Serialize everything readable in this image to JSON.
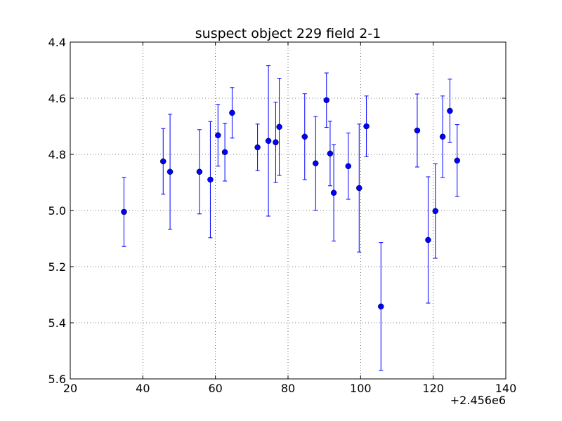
{
  "chart_data": {
    "type": "scatter",
    "title": "suspect object 229 field 2-1",
    "xlabel": "",
    "ylabel": "",
    "x_offset_label": "+2.456e6",
    "xlim": [
      20,
      140
    ],
    "ylim": [
      5.6,
      4.4
    ],
    "y_inverted": true,
    "grid": true,
    "x_ticks": [
      "20",
      "40",
      "60",
      "80",
      "100",
      "120",
      "140"
    ],
    "y_ticks": [
      "4.4",
      "4.6",
      "4.8",
      "5.0",
      "5.2",
      "5.4",
      "5.6"
    ],
    "marker_color": "#0000ff",
    "series": [
      {
        "points": [
          {
            "x": 34.8,
            "y": 5.005,
            "err": 0.123
          },
          {
            "x": 45.6,
            "y": 4.825,
            "err": 0.117
          },
          {
            "x": 47.5,
            "y": 4.862,
            "err": 0.205
          },
          {
            "x": 55.6,
            "y": 4.862,
            "err": 0.15
          },
          {
            "x": 58.6,
            "y": 4.89,
            "err": 0.207
          },
          {
            "x": 60.7,
            "y": 4.732,
            "err": 0.11
          },
          {
            "x": 62.6,
            "y": 4.792,
            "err": 0.103
          },
          {
            "x": 64.6,
            "y": 4.652,
            "err": 0.09
          },
          {
            "x": 71.6,
            "y": 4.775,
            "err": 0.083
          },
          {
            "x": 74.6,
            "y": 4.752,
            "err": 0.268
          },
          {
            "x": 76.6,
            "y": 4.757,
            "err": 0.143
          },
          {
            "x": 77.6,
            "y": 4.702,
            "err": 0.173
          },
          {
            "x": 84.6,
            "y": 4.737,
            "err": 0.153
          },
          {
            "x": 87.6,
            "y": 4.832,
            "err": 0.167
          },
          {
            "x": 90.6,
            "y": 4.607,
            "err": 0.097
          },
          {
            "x": 91.6,
            "y": 4.797,
            "err": 0.115
          },
          {
            "x": 92.6,
            "y": 4.937,
            "err": 0.172
          },
          {
            "x": 96.6,
            "y": 4.842,
            "err": 0.118
          },
          {
            "x": 99.6,
            "y": 4.92,
            "err": 0.228
          },
          {
            "x": 101.6,
            "y": 4.7,
            "err": 0.108
          },
          {
            "x": 105.6,
            "y": 5.342,
            "err": 0.228
          },
          {
            "x": 115.6,
            "y": 4.715,
            "err": 0.13
          },
          {
            "x": 118.6,
            "y": 5.105,
            "err": 0.225
          },
          {
            "x": 120.6,
            "y": 5.002,
            "err": 0.168
          },
          {
            "x": 122.6,
            "y": 4.737,
            "err": 0.145
          },
          {
            "x": 124.6,
            "y": 4.645,
            "err": 0.113
          },
          {
            "x": 126.6,
            "y": 4.822,
            "err": 0.128
          }
        ]
      }
    ]
  }
}
